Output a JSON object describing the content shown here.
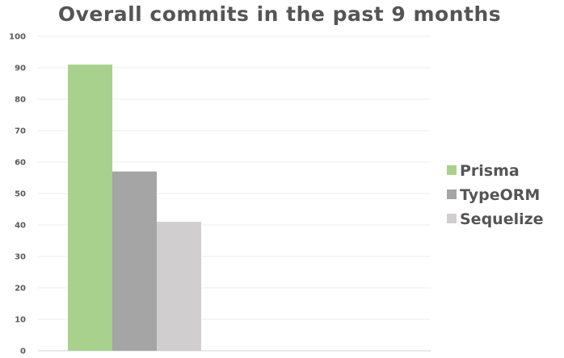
{
  "chart_data": {
    "type": "bar",
    "title": "Overall commits in the past 9 months",
    "xlabel": "",
    "ylabel": "",
    "categories": [
      ""
    ],
    "series": [
      {
        "name": "Prisma",
        "values": [
          91
        ],
        "color": "#a9d18e"
      },
      {
        "name": "TypeORM",
        "values": [
          57
        ],
        "color": "#a5a5a5"
      },
      {
        "name": "Sequelize",
        "values": [
          41
        ],
        "color": "#d0cece"
      }
    ],
    "ylim": [
      0,
      100
    ],
    "yticks": [
      "0",
      "10",
      "20",
      "30",
      "40",
      "50",
      "60",
      "70",
      "80",
      "90",
      "100"
    ],
    "grid": true,
    "legend": "right"
  }
}
